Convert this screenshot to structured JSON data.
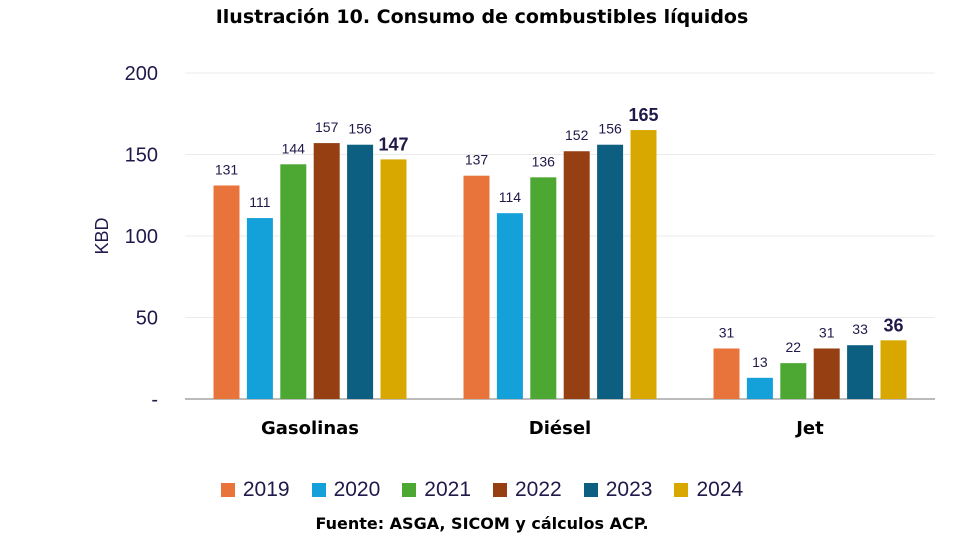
{
  "chart_data": {
    "type": "bar",
    "title": "Ilustración 10. Consumo de combustibles líquidos",
    "source": "Fuente: ASGA, SICOM y cálculos ACP.",
    "ylabel": "KBD",
    "xlabel": "",
    "ylim": [
      0,
      200
    ],
    "yticks": [
      0,
      50,
      100,
      150,
      200
    ],
    "ytick_labels": [
      "-",
      "50",
      "100",
      "150",
      "200"
    ],
    "grid": true,
    "legend": "bottom",
    "categories": [
      "Gasolinas",
      "Diésel",
      "Jet"
    ],
    "series": [
      {
        "name": "2019",
        "color": "#E8743B",
        "values": [
          131,
          137,
          31
        ]
      },
      {
        "name": "2020",
        "color": "#14A0D8",
        "values": [
          111,
          114,
          13
        ]
      },
      {
        "name": "2021",
        "color": "#4DA833",
        "values": [
          144,
          136,
          22
        ]
      },
      {
        "name": "2022",
        "color": "#953F12",
        "values": [
          157,
          152,
          31
        ]
      },
      {
        "name": "2023",
        "color": "#0C5F80",
        "values": [
          156,
          156,
          33
        ]
      },
      {
        "name": "2024",
        "color": "#D9A800",
        "values": [
          147,
          165,
          36
        ]
      }
    ]
  }
}
